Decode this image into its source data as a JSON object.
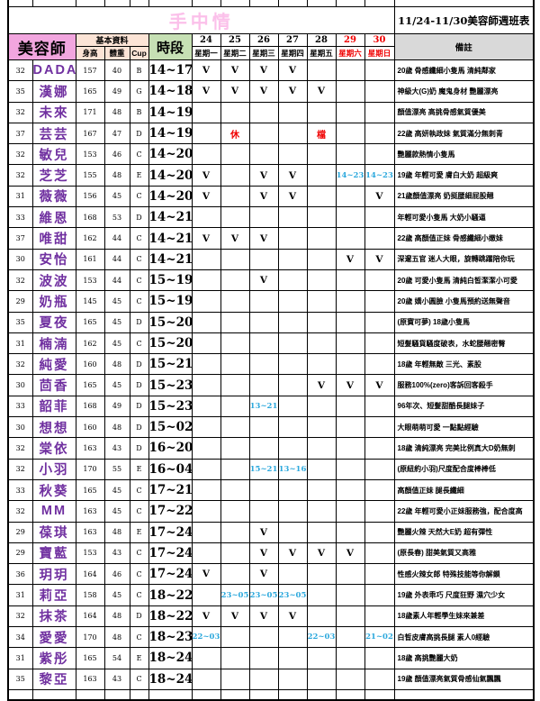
{
  "title": "手中情",
  "subtitle": "11/24-11/30美容師週班表",
  "header": {
    "beautician": "美容師",
    "basic_info": "基本資料",
    "height": "身高",
    "weight": "體重",
    "cup": "Cup",
    "time_slot": "時段",
    "remark": "備註",
    "days": [
      {
        "date": "24",
        "weekday": "星期一",
        "red": false
      },
      {
        "date": "25",
        "weekday": "星期二",
        "red": false
      },
      {
        "date": "26",
        "weekday": "星期三",
        "red": false
      },
      {
        "date": "27",
        "weekday": "星期四",
        "red": false
      },
      {
        "date": "28",
        "weekday": "星期五",
        "red": false
      },
      {
        "date": "29",
        "weekday": "星期六",
        "red": true
      },
      {
        "date": "30",
        "weekday": "星期日",
        "red": true
      }
    ]
  },
  "colors": {
    "title_pink": "#fbc0ea",
    "header_pink": "#f2a6df",
    "header_cream": "#fce4d6",
    "header_green": "#c6e0b4",
    "header_gray": "#d9d9d9",
    "name_purple": "#7030a0",
    "time_blue": "#2ea9dd",
    "mark_red": "#f00000"
  },
  "rows": [
    {
      "no": "32",
      "name": "DADA",
      "height": "157",
      "weight": "40",
      "cup": "B",
      "time": "14~17",
      "days": [
        "V",
        "V",
        "V",
        "V",
        "",
        "",
        ""
      ],
      "remark": "20歲 骨感纖細小隻馬 清純鄰家"
    },
    {
      "no": "35",
      "name": "漢娜",
      "height": "165",
      "weight": "49",
      "cup": "G",
      "time": "14~18",
      "days": [
        "V",
        "V",
        "V",
        "V",
        "V",
        "",
        ""
      ],
      "remark": "神級大(G)奶 魔鬼身材 艷麗漂亮"
    },
    {
      "no": "32",
      "name": "未來",
      "height": "171",
      "weight": "48",
      "cup": "B",
      "time": "14~19",
      "days": [
        "",
        "",
        "",
        "",
        "",
        "",
        ""
      ],
      "remark": "顏值漂亮 高挑骨感氣質優美"
    },
    {
      "no": "37",
      "name": "芸芸",
      "height": "167",
      "weight": "47",
      "cup": "D",
      "time": "14~19",
      "days": [
        "",
        "休",
        "",
        "",
        "檔",
        "",
        ""
      ],
      "remark": "22歲 高妍執政妹 氣質滿分無刺青"
    },
    {
      "no": "32",
      "name": "敏兒",
      "height": "153",
      "weight": "46",
      "cup": "C",
      "time": "14~20",
      "days": [
        "",
        "",
        "",
        "",
        "",
        "",
        ""
      ],
      "remark": "艷麗款熱情小隻馬"
    },
    {
      "no": "32",
      "name": "芝芝",
      "height": "155",
      "weight": "48",
      "cup": "E",
      "time": "14~20",
      "days": [
        "V",
        "",
        "V",
        "V",
        "",
        "14~23",
        "14~23"
      ],
      "remark": "19歲 年輕可愛 膚白大奶 超級爽"
    },
    {
      "no": "31",
      "name": "薇薇",
      "height": "156",
      "weight": "45",
      "cup": "C",
      "time": "14~20",
      "days": [
        "V",
        "",
        "V",
        "V",
        "",
        "",
        "V"
      ],
      "remark": "21歲顏值漂亮 奶挺腰細屁股翹"
    },
    {
      "no": "33",
      "name": "維恩",
      "height": "168",
      "weight": "53",
      "cup": "D",
      "time": "14~21",
      "days": [
        "",
        "",
        "",
        "",
        "",
        "",
        ""
      ],
      "remark": "年輕可愛小隻馬 大奶小騷逼"
    },
    {
      "no": "37",
      "name": "唯甜",
      "height": "162",
      "weight": "44",
      "cup": "C",
      "time": "14~21",
      "days": [
        "V",
        "V",
        "V",
        "",
        "",
        "",
        ""
      ],
      "remark": "22歲 高顏值正妹 骨感纖細小嫩妹"
    },
    {
      "no": "30",
      "name": "安怡",
      "height": "161",
      "weight": "44",
      "cup": "C",
      "time": "14~21",
      "days": [
        "",
        "",
        "",
        "",
        "",
        "V",
        "V"
      ],
      "remark": "深邃五官 迷人大眼，旋轉跳躍陪你玩"
    },
    {
      "no": "32",
      "name": "波波",
      "height": "153",
      "weight": "44",
      "cup": "C",
      "time": "15~19",
      "days": [
        "",
        "",
        "V",
        "",
        "",
        "",
        ""
      ],
      "remark": "20歲 可愛小隻馬 清純白皙潔潔小可愛"
    },
    {
      "no": "29",
      "name": "奶瓶",
      "height": "145",
      "weight": "45",
      "cup": "C",
      "time": "15~19",
      "days": [
        "",
        "",
        "",
        "",
        "",
        "",
        ""
      ],
      "remark": "20歲 嬌小圓臉 小隻馬預約送無聲音"
    },
    {
      "no": "35",
      "name": "夏夜",
      "height": "165",
      "weight": "45",
      "cup": "D",
      "time": "15~20",
      "days": [
        "",
        "",
        "",
        "",
        "",
        "",
        ""
      ],
      "remark": "(原寶可夢) 18歲小隻馬"
    },
    {
      "no": "31",
      "name": "楠湳",
      "height": "162",
      "weight": "45",
      "cup": "C",
      "time": "15~20",
      "days": [
        "",
        "",
        "",
        "",
        "",
        "",
        ""
      ],
      "remark": "短髮騷貨騷度破表，水蛇腰翹密臀"
    },
    {
      "no": "32",
      "name": "純愛",
      "height": "160",
      "weight": "48",
      "cup": "D",
      "time": "15~21",
      "days": [
        "",
        "",
        "",
        "",
        "",
        "",
        ""
      ],
      "remark": "18歲 年輕無敵 三光、素股"
    },
    {
      "no": "30",
      "name": "茴香",
      "height": "165",
      "weight": "45",
      "cup": "D",
      "time": "15~23",
      "days": [
        "",
        "",
        "",
        "",
        "V",
        "V",
        "V"
      ],
      "remark": "服務100%(zero)客訴回客殺手"
    },
    {
      "no": "33",
      "name": "韶菲",
      "height": "168",
      "weight": "49",
      "cup": "D",
      "time": "15~23",
      "days": [
        "",
        "",
        "13~21",
        "",
        "",
        "",
        ""
      ],
      "remark": "96年次、短髮甜酷長腿妹子"
    },
    {
      "no": "30",
      "name": "想想",
      "height": "160",
      "weight": "48",
      "cup": "D",
      "time": "15~02",
      "days": [
        "",
        "",
        "",
        "",
        "",
        "",
        ""
      ],
      "remark": "大眼萌萌可愛 一點點經驗"
    },
    {
      "no": "32",
      "name": "棠依",
      "height": "163",
      "weight": "43",
      "cup": "D",
      "time": "16~20",
      "days": [
        "",
        "",
        "",
        "",
        "",
        "",
        ""
      ],
      "remark": "18歲 清純漂亮 完美比例真大D奶無刺"
    },
    {
      "no": "32",
      "name": "小羽",
      "height": "170",
      "weight": "55",
      "cup": "E",
      "time": "16~04",
      "days": [
        "",
        "",
        "15~21",
        "13~16",
        "",
        "",
        ""
      ],
      "remark": "(原紐約小羽)尺度配合度棒棒低"
    },
    {
      "no": "33",
      "name": "秋葵",
      "height": "165",
      "weight": "45",
      "cup": "C",
      "time": "17~21",
      "days": [
        "",
        "",
        "",
        "",
        "",
        "",
        ""
      ],
      "remark": "高顏值正妹 腿長纖細"
    },
    {
      "no": "32",
      "name": "MM",
      "height": "163",
      "weight": "45",
      "cup": "C",
      "time": "17~22",
      "days": [
        "",
        "",
        "",
        "",
        "",
        "",
        ""
      ],
      "remark": "22歲 年輕可愛小正妹服務強，配合度高"
    },
    {
      "no": "29",
      "name": "葆琪",
      "height": "163",
      "weight": "48",
      "cup": "E",
      "time": "17~24",
      "days": [
        "",
        "",
        "V",
        "",
        "",
        "",
        ""
      ],
      "remark": "艷麗火辣 天然大E奶 超有彈性"
    },
    {
      "no": "29",
      "name": "寶藍",
      "height": "153",
      "weight": "43",
      "cup": "C",
      "time": "17~24",
      "days": [
        "",
        "",
        "V",
        "V",
        "V",
        "V",
        ""
      ],
      "remark": "(原長春) 甜美氣質又高雅"
    },
    {
      "no": "36",
      "name": "玥玥",
      "height": "164",
      "weight": "46",
      "cup": "C",
      "time": "17~24",
      "days": [
        "V",
        "",
        "V",
        "",
        "",
        "",
        ""
      ],
      "remark": "性感火辣女郎 特殊技能等你解鎖"
    },
    {
      "no": "31",
      "name": "莉亞",
      "height": "158",
      "weight": "45",
      "cup": "C",
      "time": "18~22",
      "days": [
        "",
        "23~05",
        "23~05",
        "23~05",
        "",
        "",
        ""
      ],
      "remark": "19歲 外表乖巧 尺度狂野 濕穴少女"
    },
    {
      "no": "32",
      "name": "抹茶",
      "height": "164",
      "weight": "48",
      "cup": "D",
      "time": "18~22",
      "days": [
        "V",
        "V",
        "V",
        "V",
        "",
        "",
        ""
      ],
      "remark": "18歲素人年輕學生妹來兼差"
    },
    {
      "no": "34",
      "name": "愛愛",
      "height": "170",
      "weight": "48",
      "cup": "C",
      "time": "18~23",
      "days": [
        "22~03",
        "",
        "",
        "",
        "22~03",
        "",
        "21~02"
      ],
      "remark": "白皙皮膚高挑長腿 素人0經驗"
    },
    {
      "no": "31",
      "name": "紫彤",
      "height": "165",
      "weight": "54",
      "cup": "E",
      "time": "18~24",
      "days": [
        "",
        "",
        "",
        "",
        "",
        "",
        ""
      ],
      "remark": "18歲 高挑艷麗大奶"
    },
    {
      "no": "35",
      "name": "黎亞",
      "height": "163",
      "weight": "43",
      "cup": "C",
      "time": "18~24",
      "days": [
        "",
        "",
        "",
        "",
        "",
        "",
        ""
      ],
      "remark": "19歲 顏值漂亮氣質骨感仙氣飄飄"
    }
  ]
}
